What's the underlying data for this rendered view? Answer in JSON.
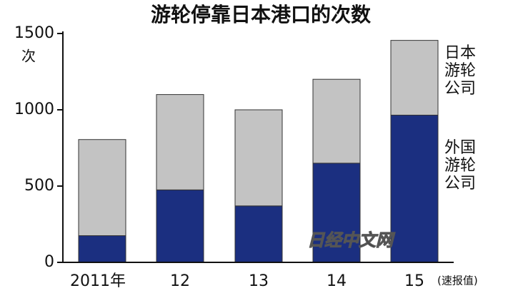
{
  "chart_data": {
    "type": "stacked_bar",
    "title": "游轮停靠日本港口的次数",
    "y_unit": "次",
    "categories": [
      "2011年",
      "12",
      "13",
      "14",
      "15"
    ],
    "annotation": "(速报值)",
    "watermark": "日经中文网",
    "series": [
      {
        "name": "外国游轮公司",
        "color": "#1b2f80",
        "values": [
          175,
          475,
          370,
          650,
          965
        ]
      },
      {
        "name": "日本游轮公司",
        "color": "#c3c3c3",
        "values": [
          630,
          625,
          630,
          550,
          490
        ]
      }
    ],
    "ylim": [
      0,
      1500
    ],
    "yticks": [
      0,
      500,
      1000,
      1500
    ],
    "grid": false,
    "legend_position": "right"
  }
}
